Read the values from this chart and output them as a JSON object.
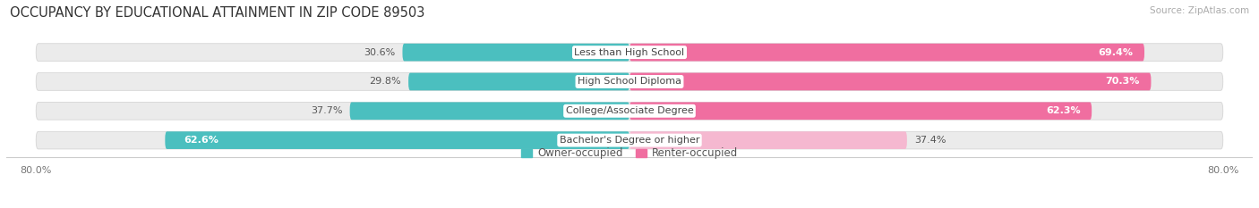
{
  "title": "OCCUPANCY BY EDUCATIONAL ATTAINMENT IN ZIP CODE 89503",
  "source": "Source: ZipAtlas.com",
  "categories": [
    "Less than High School",
    "High School Diploma",
    "College/Associate Degree",
    "Bachelor's Degree or higher"
  ],
  "owner_values": [
    30.6,
    29.8,
    37.7,
    62.6
  ],
  "renter_values": [
    69.4,
    70.3,
    62.3,
    37.4
  ],
  "owner_color": "#4BBFBF",
  "renter_color": "#F06EA0",
  "renter_color_light": "#F5B8D0",
  "bar_bg_color": "#EBEBEB",
  "bar_bg_shadow": "#D8D8D8",
  "axis_min": -80.0,
  "axis_max": 80.0,
  "legend_owner": "Owner-occupied",
  "legend_renter": "Renter-occupied",
  "title_fontsize": 10.5,
  "source_fontsize": 7.5,
  "label_fontsize": 8,
  "value_fontsize": 8,
  "bar_height": 0.6
}
